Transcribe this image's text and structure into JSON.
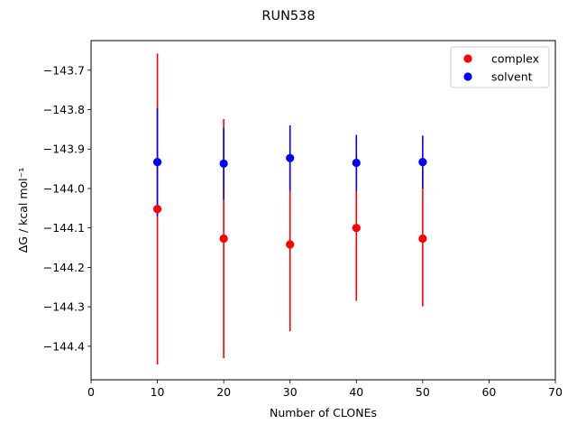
{
  "chart_data": {
    "type": "scatter",
    "title": "RUN538",
    "xlabel": "Number of CLONEs",
    "ylabel": "ΔG / kcal mol⁻¹",
    "xlim": [
      0,
      70
    ],
    "ylim": [
      -144.485,
      -143.625
    ],
    "xticks": [
      0,
      10,
      20,
      30,
      40,
      50,
      60,
      70
    ],
    "yticks": [
      -144.4,
      -144.3,
      -144.2,
      -144.1,
      -144.0,
      -143.9,
      -143.8,
      -143.7
    ],
    "ytick_labels": [
      "−144.4",
      "−144.3",
      "−144.2",
      "−144.1",
      "−144.0",
      "−143.9",
      "−143.8",
      "−143.7"
    ],
    "grid": false,
    "legend_position": "top-right",
    "series": [
      {
        "name": "complex",
        "color": "#ff0000",
        "x": [
          10,
          20,
          30,
          40,
          50
        ],
        "y": [
          -144.052,
          -144.127,
          -144.142,
          -144.1,
          -144.127
        ],
        "err": [
          0.394,
          0.303,
          0.22,
          0.185,
          0.172
        ]
      },
      {
        "name": "solvent",
        "color": "#0000ff",
        "x": [
          10,
          20,
          30,
          40,
          50
        ],
        "y": [
          -143.933,
          -143.937,
          -143.923,
          -143.935,
          -143.933
        ],
        "err": [
          0.137,
          0.091,
          0.083,
          0.071,
          0.067
        ]
      }
    ]
  }
}
